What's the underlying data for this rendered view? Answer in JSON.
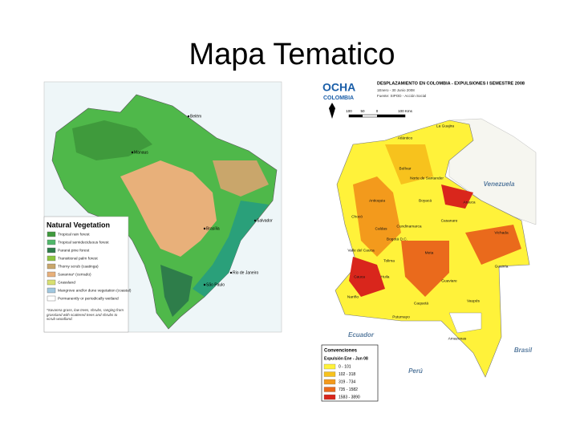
{
  "title": "Mapa Tematico",
  "left_map": {
    "legend_title": "Natural Vegetation",
    "legend": [
      {
        "label": "Tropical rain forest",
        "color": "#3f9a3c"
      },
      {
        "label": "Tropical semideciduous forest",
        "color": "#4fb86a"
      },
      {
        "label": "Paraná pine forest",
        "color": "#2e7d4a"
      },
      {
        "label": "Transitional palm forest",
        "color": "#8cc63f"
      },
      {
        "label": "Thorny scrub (caatinga)",
        "color": "#c9a66b"
      },
      {
        "label": "Savanna* (cerrado)",
        "color": "#e8b07a"
      },
      {
        "label": "Grassland",
        "color": "#d8e070"
      },
      {
        "label": "Mangrove and/or dune vegetation (coastal)",
        "color": "#a0c8e0"
      },
      {
        "label": "Permanently or periodically wetland",
        "color": "#ffffff"
      }
    ],
    "note": "*Savanna grass, low trees, shrubs, ranging from grassland with scattered trees and shrubs to scrub woodland.",
    "cities": [
      "Manaus",
      "Brasília",
      "Salvador",
      "Rio de Janeiro",
      "São Paulo",
      "Belém"
    ]
  },
  "right_map": {
    "logo": "OCHA",
    "logo_sub": "COLOMBIA",
    "title": "DESPLAZAMIENTO EN COLOMBIA - EXPULSIONES I SEMESTRE 2008",
    "dates": "1Enero - 30 Junio 2008",
    "source": "Fuente: SIPOD - Acción Social",
    "scale": [
      "100",
      "50",
      "0",
      "100 Kms"
    ],
    "countries": [
      "Venezuela",
      "Ecuador",
      "Perú",
      "Brasil"
    ],
    "regions": [
      "La Guajira",
      "Atlántico",
      "Bolívar",
      "Norte de Santander",
      "Arauca",
      "Antioquia",
      "Chocó",
      "Boyacá",
      "Casanare",
      "Vichada",
      "Caldas",
      "Cundinamarca",
      "Bogotá D.C.",
      "Meta",
      "Valle del Cauca",
      "Tolima",
      "Huila",
      "Cauca",
      "Nariño",
      "Guaviare",
      "Caquetá",
      "Putumayo",
      "Vaupés",
      "Guainía",
      "Amazonas"
    ],
    "legend_title": "Convenciones",
    "legend_subtitle": "Expulsión Ene - Jun 08",
    "legend": [
      {
        "label": "0 - 101",
        "color": "#fff23a"
      },
      {
        "label": "102 - 318",
        "color": "#f7c21d"
      },
      {
        "label": "319 - 734",
        "color": "#f39a1c"
      },
      {
        "label": "735 - 1582",
        "color": "#ea6a1c"
      },
      {
        "label": "1583 - 3890",
        "color": "#d9261c"
      }
    ]
  }
}
